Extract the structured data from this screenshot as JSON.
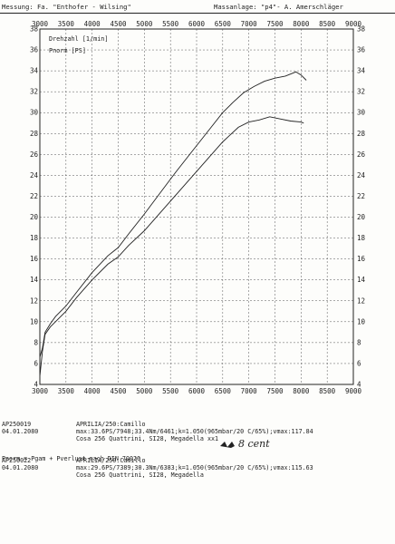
{
  "header": {
    "left_label": "Messung:",
    "left_value": "Fa. \"Enthofer - Wilsing\"",
    "right_label": "Massanlage:",
    "right_value": "\"p4\"- A. Amerschläger"
  },
  "chart_data": {
    "type": "line",
    "xlim": [
      3000,
      9000
    ],
    "ylim": [
      4,
      38
    ],
    "x_ticks": [
      "3000",
      "3500",
      "4000",
      "4500",
      "5000",
      "5500",
      "6000",
      "6500",
      "7000",
      "7500",
      "8000",
      "8500",
      "9000"
    ],
    "y_ticks": [
      "4",
      "6",
      "8",
      "10",
      "12",
      "14",
      "16",
      "18",
      "20",
      "22",
      "24",
      "26",
      "28",
      "30",
      "32",
      "34",
      "36",
      "38"
    ],
    "right_y_ticks": [
      "4",
      "6",
      "8",
      "10",
      "12",
      "14",
      "16",
      "18",
      "20",
      "22",
      "24",
      "26",
      "28",
      "30",
      "32",
      "34",
      "36",
      "38"
    ],
    "grid": true,
    "grid_style": "dashed",
    "legend": [
      "Drehzahl [1/min]",
      "Pnorm [PS]"
    ],
    "series": [
      {
        "x": [
          3000,
          3050,
          3100,
          3200,
          3300,
          3500,
          3700,
          4000,
          4300,
          4500,
          4700,
          5000,
          5300,
          5600,
          5900,
          6200,
          6500,
          6700,
          6900,
          7100,
          7300,
          7500,
          7700,
          7900,
          8000,
          8100
        ],
        "y": [
          6.6,
          7.5,
          9.0,
          9.8,
          10.5,
          11.5,
          12.8,
          14.7,
          16.3,
          17.1,
          18.4,
          20.3,
          22.3,
          24.3,
          26.2,
          28.1,
          30.0,
          31.0,
          31.9,
          32.5,
          33.0,
          33.3,
          33.5,
          33.9,
          33.6,
          33.1
        ]
      },
      {
        "x": [
          3000,
          3050,
          3100,
          3200,
          3300,
          3500,
          3700,
          4000,
          4300,
          4500,
          4700,
          5000,
          5300,
          5600,
          5900,
          6200,
          6500,
          6800,
          7000,
          7200,
          7400,
          7600,
          7800,
          8000,
          8050
        ],
        "y": [
          4.8,
          7.2,
          8.8,
          9.5,
          10.0,
          11.0,
          12.3,
          14.0,
          15.5,
          16.2,
          17.3,
          18.7,
          20.4,
          22.1,
          23.8,
          25.5,
          27.2,
          28.6,
          29.1,
          29.3,
          29.6,
          29.4,
          29.2,
          29.1,
          29.0
        ]
      }
    ]
  },
  "info": {
    "runs": [
      {
        "id": "AP250019",
        "date": "04.01.2080",
        "line1": "APRILIA/250:Camillo",
        "line2": "max:33.6PS/7948;33.4Nm/6461;k=1.050(965mbar/20 C/65%);vmax:117.84",
        "line3": "Cosa 256 Quattrini, SI28, Megadella xx1"
      },
      {
        "id": "AP250022",
        "date": "04.01.2080",
        "line1": "APRILIA/250:Camillo",
        "line2": "max:29.6PS/7389;30.3Nm/6383;k=1.050(965mbar/20 C/65%);vmax:115.63",
        "line3": "Cosa 256 Quattrini, SI28, Megadella"
      }
    ],
    "handwritten": "8 cent",
    "formula": "Pnorm = Pgam + Pverlust nach DIN 70020"
  }
}
